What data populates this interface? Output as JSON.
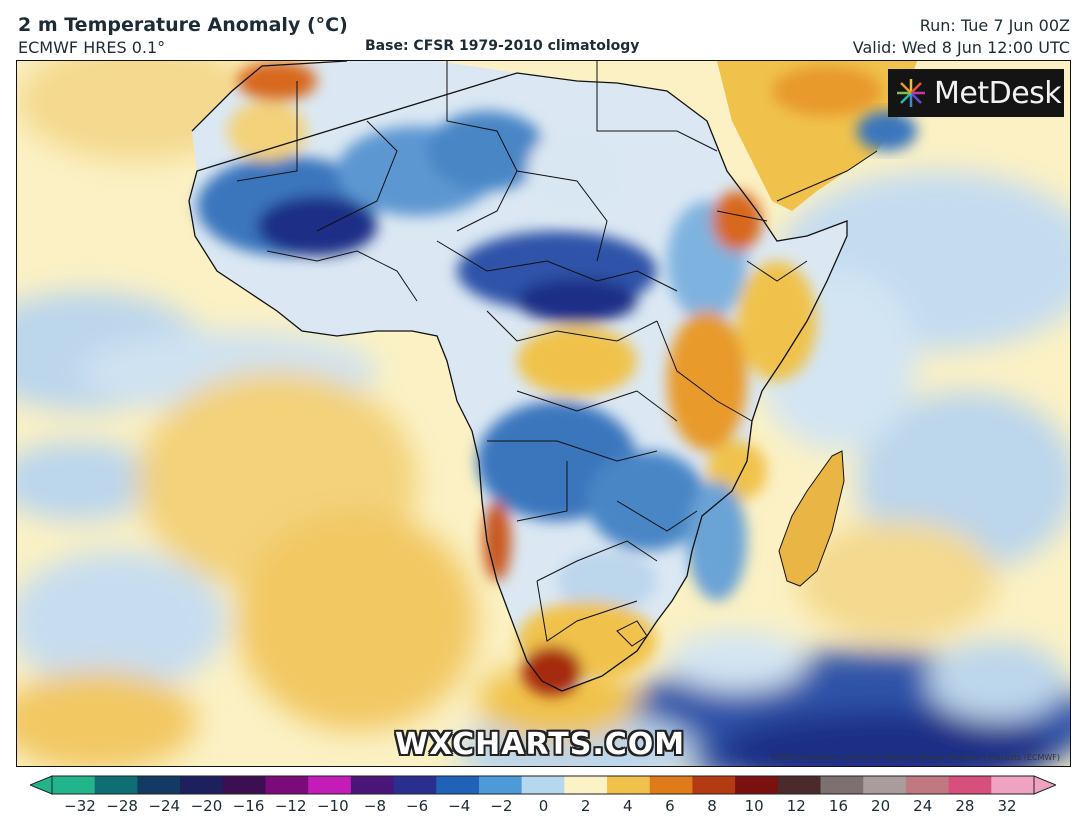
{
  "header": {
    "title": "2 m Temperature Anomaly (°C)",
    "model": "ECMWF HRES 0.1°",
    "base": "Base: CFSR 1979-2010 climatology",
    "run": "Run: Tue 7 Jun 00Z",
    "valid": "Valid: Wed 8 Jun 12:00 UTC"
  },
  "logo": {
    "text": "MetDesk",
    "icon": "metdesk-starburst-icon"
  },
  "watermark": "WXCHARTS.COM",
  "copyright": "©2022 European Centre for Medium-Range Weather Forecasts (ECMWF)",
  "colorbar": {
    "ticks": [
      "−32",
      "−28",
      "−24",
      "−20",
      "−16",
      "−12",
      "−10",
      "−8",
      "−6",
      "−4",
      "−2",
      "0",
      "2",
      "4",
      "6",
      "8",
      "10",
      "12",
      "16",
      "20",
      "24",
      "28",
      "32"
    ],
    "colors": [
      "#22b58c",
      "#0f6e73",
      "#123a63",
      "#1d1f5e",
      "#3c0f52",
      "#7b0a7a",
      "#c41cb8",
      "#4a1478",
      "#2a2f8f",
      "#1f62b8",
      "#4c9bd8",
      "#b6d8ef",
      "#fbf3c6",
      "#f0c24c",
      "#e07b1c",
      "#b43a12",
      "#7a1010",
      "#4a2a2a",
      "#7c7070",
      "#a89c9c",
      "#c27880",
      "#d7507c",
      "#f0a2c2"
    ]
  },
  "colors": {
    "ocean_neutral": "#fbf1c4",
    "warm": "#e9b545",
    "hot": "#a62c10",
    "cool": "#bcd6ec",
    "cold": "#3b76bd",
    "very_cold": "#1d2f86"
  }
}
